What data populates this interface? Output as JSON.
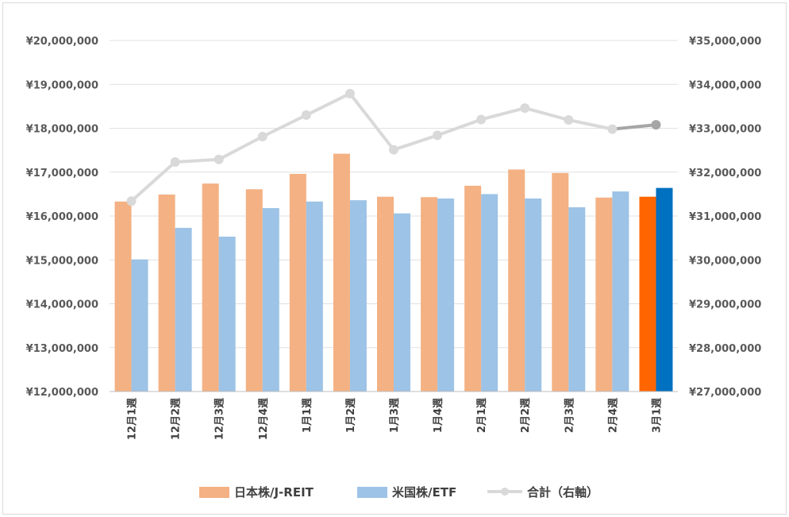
{
  "chart_data": {
    "type": "bar",
    "categories": [
      "12月1週",
      "12月2週",
      "12月3週",
      "12月4週",
      "1月1週",
      "1月2週",
      "1月3週",
      "1月4週",
      "2月1週",
      "2月2週",
      "2月3週",
      "2月4週",
      "3月1週"
    ],
    "series": [
      {
        "name": "日本株/J-REIT",
        "type": "bar",
        "axis": "left",
        "color": "#F4B183",
        "highlight_color": "#FF6600",
        "values": [
          16330000,
          16490000,
          16740000,
          16610000,
          16960000,
          17420000,
          16440000,
          16430000,
          16690000,
          17060000,
          16980000,
          16420000,
          16440000
        ]
      },
      {
        "name": "米国株/ETF",
        "type": "bar",
        "axis": "left",
        "color": "#9DC3E6",
        "highlight_color": "#0070C0",
        "values": [
          15010000,
          15730000,
          15530000,
          16180000,
          16330000,
          16360000,
          16060000,
          16400000,
          16500000,
          16400000,
          16200000,
          16560000,
          16640000
        ]
      },
      {
        "name": "合計（右軸）",
        "type": "line",
        "axis": "right",
        "color": "#D9D9D9",
        "highlight_color": "#A6A6A6",
        "values": [
          31340000,
          32230000,
          32290000,
          32810000,
          33300000,
          33790000,
          32510000,
          32840000,
          33200000,
          33460000,
          33190000,
          32980000,
          33080000
        ]
      }
    ],
    "y_left": {
      "min": 12000000,
      "max": 20000000,
      "step": 1000000,
      "tick_labels": [
        "¥12,000,000",
        "¥13,000,000",
        "¥14,000,000",
        "¥15,000,000",
        "¥16,000,000",
        "¥17,000,000",
        "¥18,000,000",
        "¥19,000,000",
        "¥20,000,000"
      ]
    },
    "y_right": {
      "min": 27000000,
      "max": 35000000,
      "step": 1000000,
      "tick_labels": [
        "¥27,000,000",
        "¥28,000,000",
        "¥29,000,000",
        "¥30,000,000",
        "¥31,000,000",
        "¥32,000,000",
        "¥33,000,000",
        "¥34,000,000",
        "¥35,000,000"
      ]
    },
    "highlight_last": true,
    "grid": true,
    "legend_position": "bottom"
  }
}
